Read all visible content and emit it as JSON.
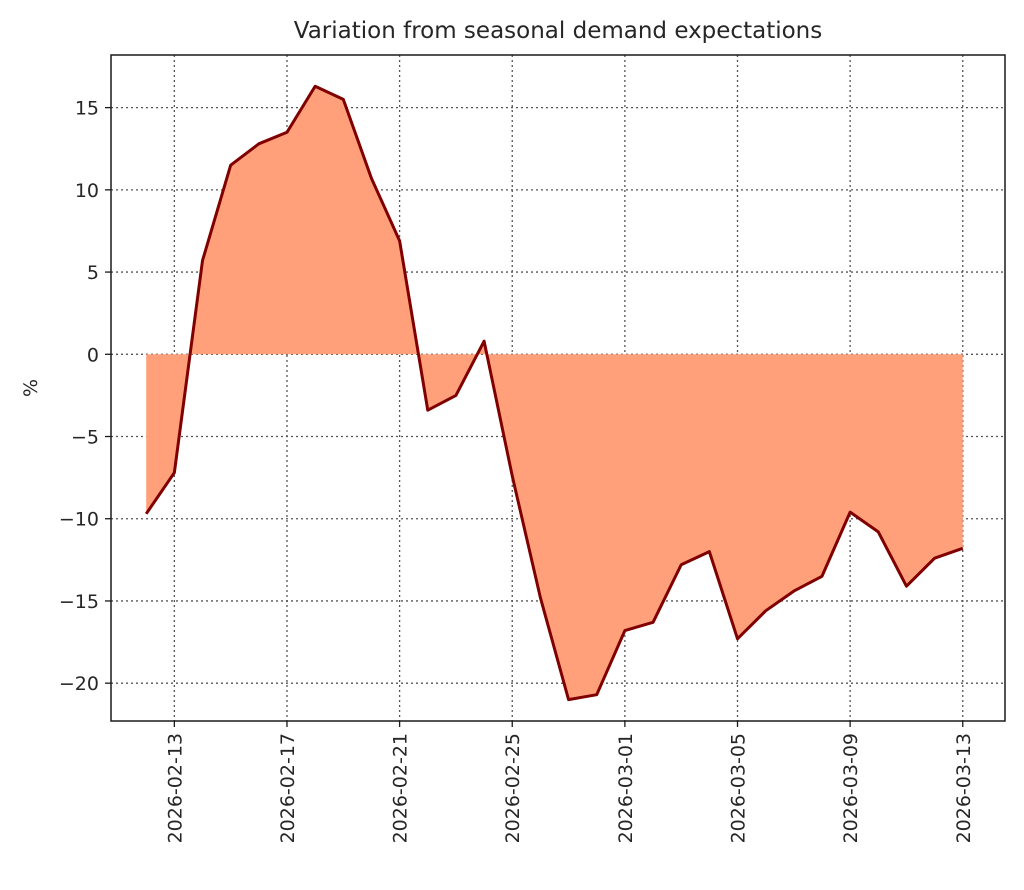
{
  "chart_data": {
    "type": "area",
    "title": "Variation from seasonal demand expectations",
    "xlabel": "",
    "ylabel": "%",
    "x": [
      "2026-02-12",
      "2026-02-13",
      "2026-02-14",
      "2026-02-15",
      "2026-02-16",
      "2026-02-17",
      "2026-02-18",
      "2026-02-19",
      "2026-02-20",
      "2026-02-21",
      "2026-02-22",
      "2026-02-23",
      "2026-02-24",
      "2026-02-25",
      "2026-02-26",
      "2026-02-27",
      "2026-02-28",
      "2026-03-01",
      "2026-03-02",
      "2026-03-03",
      "2026-03-04",
      "2026-03-05",
      "2026-03-06",
      "2026-03-07",
      "2026-03-08",
      "2026-03-09",
      "2026-03-10",
      "2026-03-11",
      "2026-03-12",
      "2026-03-13"
    ],
    "values": [
      -9.7,
      -7.2,
      5.7,
      11.5,
      12.8,
      13.5,
      16.3,
      15.5,
      10.7,
      6.9,
      -3.4,
      -2.5,
      0.8,
      -7.4,
      -14.8,
      -21.0,
      -20.7,
      -16.8,
      -16.3,
      -12.8,
      -12.0,
      -17.3,
      -15.6,
      -14.4,
      -13.5,
      -9.6,
      -10.8,
      -14.1,
      -12.4,
      -11.8
    ],
    "fill_baseline": 0,
    "x_ticks": [
      "2026-02-13",
      "2026-02-17",
      "2026-02-21",
      "2026-02-25",
      "2026-03-01",
      "2026-03-05",
      "2026-03-09",
      "2026-03-13"
    ],
    "y_ticks": [
      -20,
      -15,
      -10,
      -5,
      0,
      5,
      10,
      15
    ],
    "y_tick_labels": [
      "−20",
      "−15",
      "−10",
      "−5",
      "0",
      "5",
      "10",
      "15"
    ],
    "ylim": [
      -22.3,
      18.2
    ],
    "xlim": [
      "2026-02-10T18:00",
      "2026-03-14T12:00"
    ],
    "grid": true,
    "colors": {
      "line": "#800000",
      "fill": "#FFA07A",
      "grid": "#555555"
    }
  }
}
